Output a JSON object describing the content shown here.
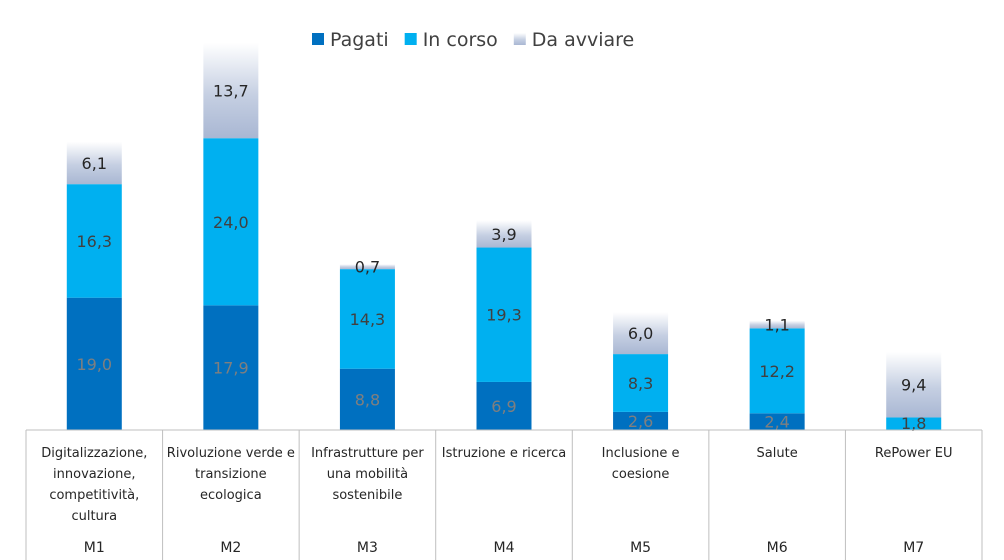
{
  "chart_data": {
    "type": "bar",
    "stacked": true,
    "categories": [
      {
        "label": [
          "Digitalizzazione,",
          "innovazione,",
          "competitività,",
          "cultura"
        ],
        "code": "M1"
      },
      {
        "label": [
          "Rivoluzione verde e",
          "transizione",
          "ecologica"
        ],
        "code": "M2"
      },
      {
        "label": [
          "Infrastrutture per",
          "una mobilità",
          "sostenibile"
        ],
        "code": "M3"
      },
      {
        "label": [
          "Istruzione e ricerca"
        ],
        "code": "M4"
      },
      {
        "label": [
          "Inclusione e",
          "coesione"
        ],
        "code": "M5"
      },
      {
        "label": [
          "Salute"
        ],
        "code": "M6"
      },
      {
        "label": [
          "RePower EU"
        ],
        "code": "M7"
      }
    ],
    "series": [
      {
        "name": "Pagati",
        "color": "#0070C0",
        "label_color": "#7f7f7f",
        "values": [
          19.0,
          17.9,
          8.8,
          6.9,
          2.6,
          2.4,
          0.0
        ]
      },
      {
        "name": "In corso",
        "color": "#00B0F0",
        "label_color": "#404040",
        "values": [
          16.3,
          24.0,
          14.3,
          19.3,
          8.3,
          12.2,
          1.8
        ]
      },
      {
        "name": "Da avviare",
        "color": "#C5CFE2",
        "label_color": "#262626",
        "values": [
          6.1,
          13.7,
          0.7,
          3.9,
          6.0,
          1.1,
          9.4
        ]
      }
    ],
    "value_labels": [
      [
        "19,0",
        "17,9",
        "8,8",
        "6,9",
        "2,6",
        "2,4",
        ""
      ],
      [
        "16,3",
        "24,0",
        "14,3",
        "19,3",
        "8,3",
        "12,2",
        "1,8"
      ],
      [
        "6,1",
        "13,7",
        "0,7",
        "3,9",
        "6,0",
        "1,1",
        "9,4"
      ]
    ],
    "ylim": [
      0,
      56
    ],
    "legend": "top",
    "grid": false
  }
}
